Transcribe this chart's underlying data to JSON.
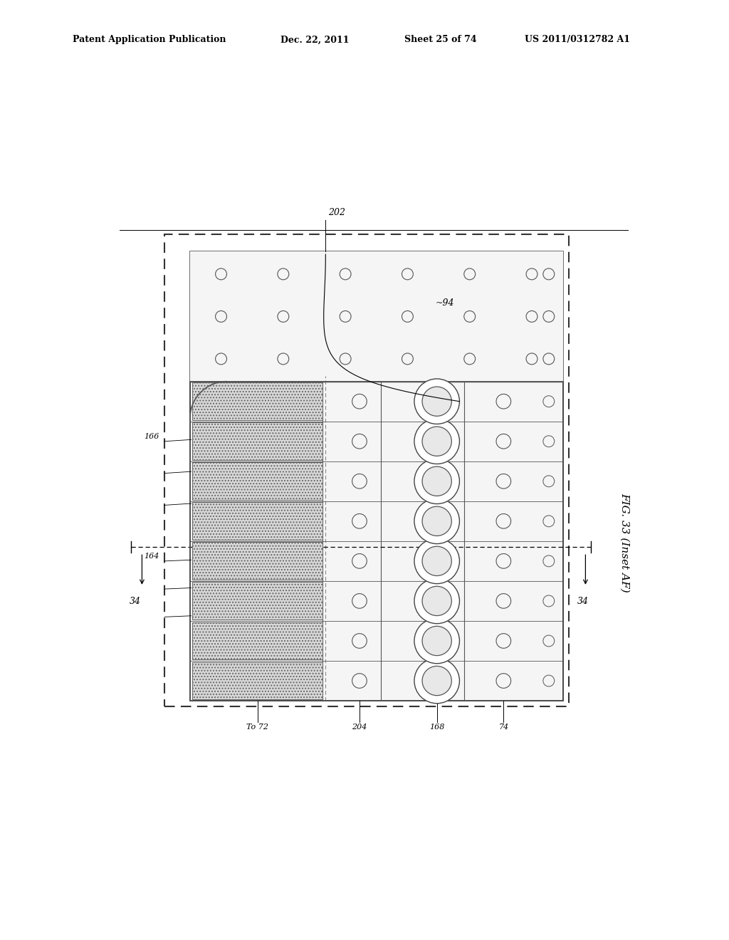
{
  "bg_color": "#ffffff",
  "header_text": "Patent Application Publication",
  "header_date": "Dec. 22, 2011",
  "header_sheet": "Sheet 25 of 74",
  "header_patent": "US 2011/0312782 A1",
  "fig_label": "FIG. 33 (Inset AF)",
  "label_202": "202",
  "label_94": "~94",
  "label_166": "166",
  "label_164": "164",
  "label_34": "34",
  "label_34b": "34",
  "label_To72": "To 72",
  "label_204": "204",
  "label_168": "168",
  "label_74": "74",
  "num_nozzle_rows": 8
}
